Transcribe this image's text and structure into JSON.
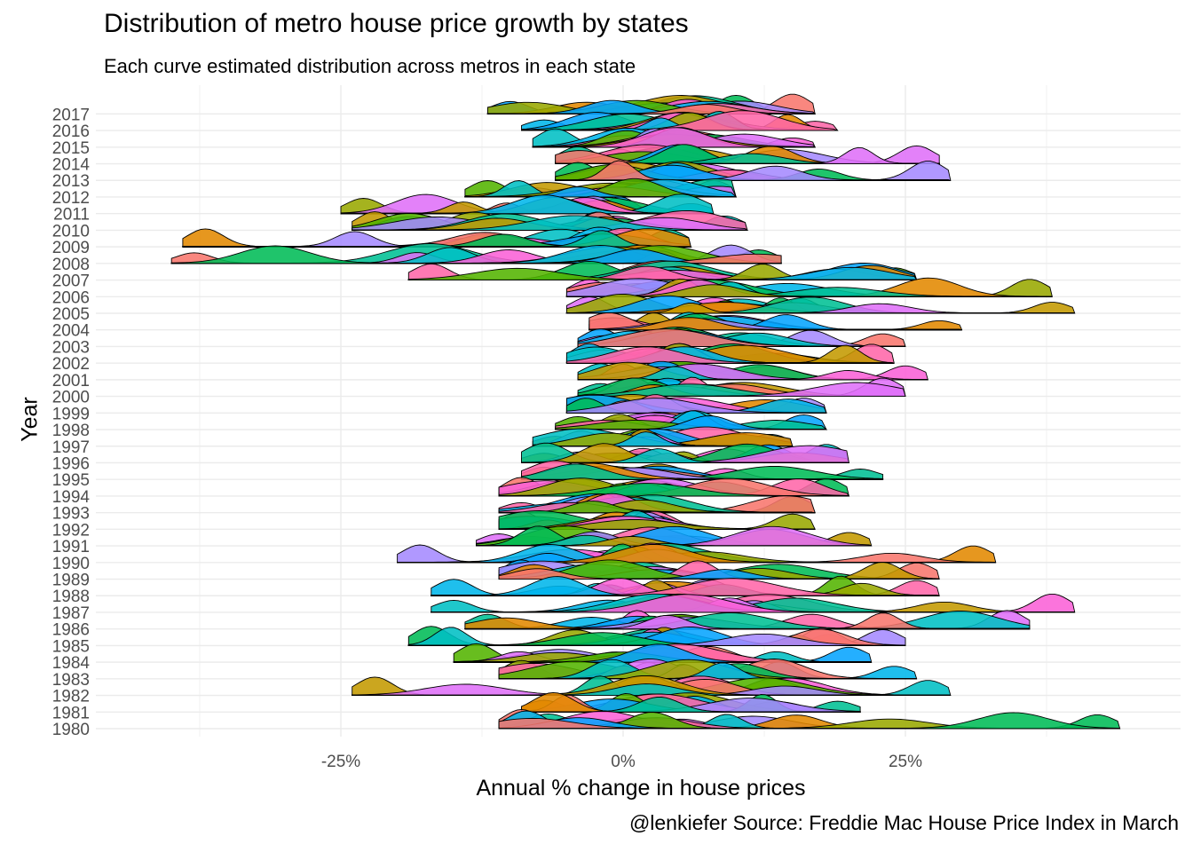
{
  "page": {
    "title": "Distribution of metro house price growth by states",
    "subtitle": "Each curve estimated distribution across metros in each state",
    "caption": "@lenkiefer Source: Freddie Mac House Price Index in March"
  },
  "chart_data": {
    "type": "ridgeline",
    "title": "Distribution of metro house price growth by states",
    "subtitle": "Each curve estimated distribution across metros in each state",
    "xlabel": "Annual % change in house prices",
    "ylabel": "Year",
    "x_ticks": [
      -25,
      0,
      25
    ],
    "x_tick_labels": [
      "-25%",
      "0%",
      "25%"
    ],
    "xlim": [
      -40,
      45
    ],
    "years": [
      1980,
      1981,
      1982,
      1983,
      1984,
      1985,
      1986,
      1987,
      1988,
      1989,
      1990,
      1991,
      1992,
      1993,
      1994,
      1995,
      1996,
      1997,
      1998,
      1999,
      2000,
      2001,
      2002,
      2003,
      2004,
      2005,
      2006,
      2007,
      2008,
      2009,
      2010,
      2011,
      2012,
      2013,
      2014,
      2015,
      2016,
      2017
    ],
    "grid": true,
    "legend": "none",
    "palette": [
      "#F8766D",
      "#E38900",
      "#C49A00",
      "#99A800",
      "#53B400",
      "#00BC56",
      "#00C094",
      "#00BFC4",
      "#00B6EB",
      "#06A4FF",
      "#A58AFF",
      "#DF70F8",
      "#FB61D7",
      "#FF66A8"
    ],
    "year_summary": [
      {
        "year": 1980,
        "center": 3,
        "min": -11,
        "max": 44
      },
      {
        "year": 1981,
        "center": 3,
        "min": -9,
        "max": 21
      },
      {
        "year": 1982,
        "center": 2,
        "min": -24,
        "max": 29
      },
      {
        "year": 1983,
        "center": 3,
        "min": -11,
        "max": 26
      },
      {
        "year": 1984,
        "center": 3,
        "min": -15,
        "max": 22
      },
      {
        "year": 1985,
        "center": 3,
        "min": -19,
        "max": 25
      },
      {
        "year": 1986,
        "center": 5,
        "min": -14,
        "max": 36
      },
      {
        "year": 1987,
        "center": 4,
        "min": -17,
        "max": 40
      },
      {
        "year": 1988,
        "center": 3,
        "min": -17,
        "max": 28
      },
      {
        "year": 1989,
        "center": 3,
        "min": -11,
        "max": 28
      },
      {
        "year": 1990,
        "center": 3,
        "min": -20,
        "max": 33
      },
      {
        "year": 1991,
        "center": 2,
        "min": -13,
        "max": 22
      },
      {
        "year": 1992,
        "center": 1,
        "min": -11,
        "max": 17
      },
      {
        "year": 1993,
        "center": 1,
        "min": -11,
        "max": 17
      },
      {
        "year": 1994,
        "center": 2,
        "min": -11,
        "max": 20
      },
      {
        "year": 1995,
        "center": 3,
        "min": -9,
        "max": 23
      },
      {
        "year": 1996,
        "center": 3,
        "min": -9,
        "max": 20
      },
      {
        "year": 1997,
        "center": 2,
        "min": -8,
        "max": 15
      },
      {
        "year": 1998,
        "center": 3,
        "min": -6,
        "max": 18
      },
      {
        "year": 1999,
        "center": 3,
        "min": -5,
        "max": 18
      },
      {
        "year": 2000,
        "center": 4,
        "min": -4,
        "max": 25
      },
      {
        "year": 2001,
        "center": 5,
        "min": -4,
        "max": 27
      },
      {
        "year": 2002,
        "center": 5,
        "min": -5,
        "max": 24
      },
      {
        "year": 2003,
        "center": 5,
        "min": -4,
        "max": 25
      },
      {
        "year": 2004,
        "center": 6,
        "min": -3,
        "max": 30
      },
      {
        "year": 2005,
        "center": 9,
        "min": -5,
        "max": 40
      },
      {
        "year": 2006,
        "center": 8,
        "min": -5,
        "max": 38
      },
      {
        "year": 2007,
        "center": 4,
        "min": -19,
        "max": 26
      },
      {
        "year": 2008,
        "center": 1,
        "min": -40,
        "max": 14
      },
      {
        "year": 2009,
        "center": -2,
        "min": -39,
        "max": 6
      },
      {
        "year": 2010,
        "center": -1,
        "min": -24,
        "max": 11
      },
      {
        "year": 2011,
        "center": -2,
        "min": -25,
        "max": 8
      },
      {
        "year": 2012,
        "center": 1,
        "min": -14,
        "max": 10
      },
      {
        "year": 2013,
        "center": 5,
        "min": -6,
        "max": 29
      },
      {
        "year": 2014,
        "center": 5,
        "min": -6,
        "max": 28
      },
      {
        "year": 2015,
        "center": 5,
        "min": -8,
        "max": 17
      },
      {
        "year": 2016,
        "center": 5,
        "min": -9,
        "max": 19
      },
      {
        "year": 2017,
        "center": 6,
        "min": -12,
        "max": 17
      }
    ]
  }
}
